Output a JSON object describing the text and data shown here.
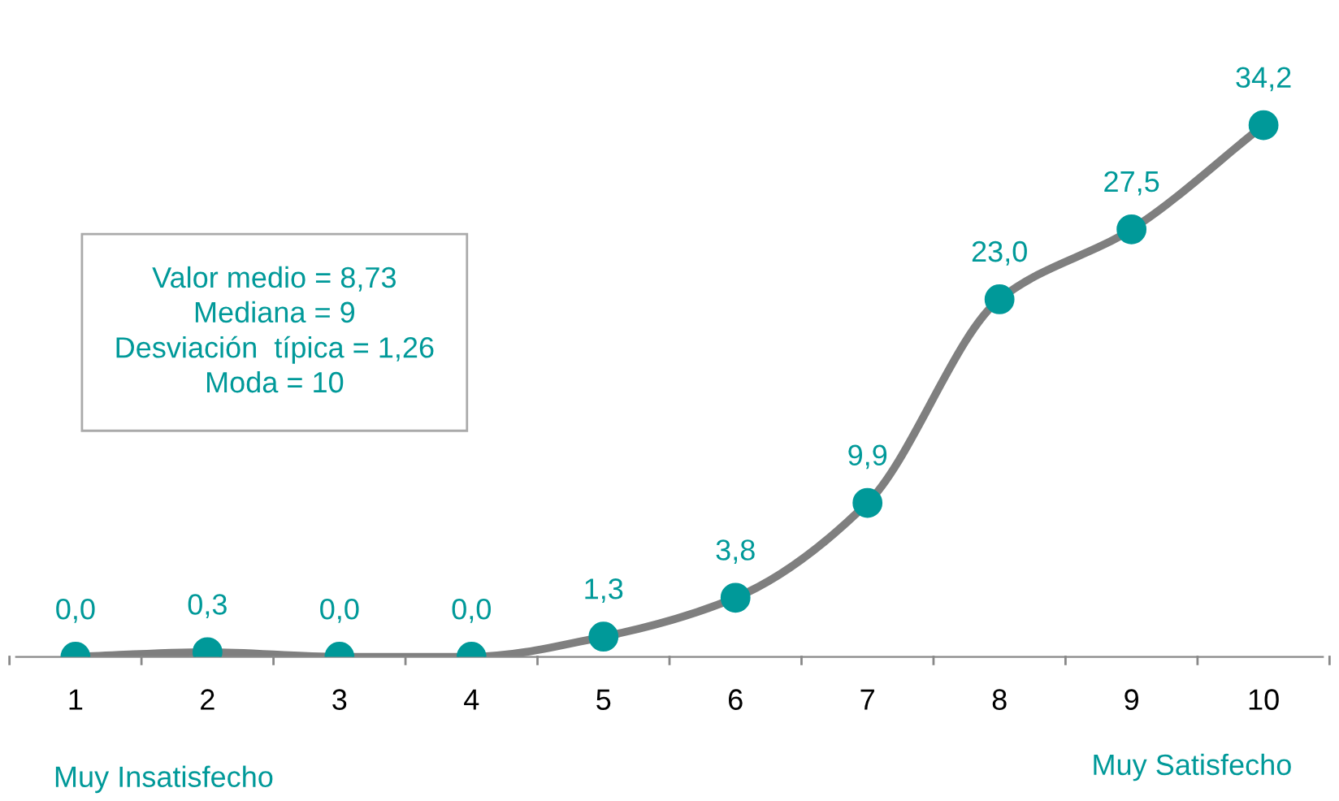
{
  "chart_data": {
    "type": "line",
    "categories": [
      "1",
      "2",
      "3",
      "4",
      "5",
      "6",
      "7",
      "8",
      "9",
      "10"
    ],
    "series": [
      {
        "color": "#7f7f7f",
        "colors": [
          "#009999",
          "#009999",
          "#009999",
          "#009999",
          "#009999",
          "#009999",
          "#009999",
          "#009999",
          "#009999",
          "#009999"
        ],
        "values": [
          0.0,
          0.3,
          0.0,
          0.0,
          1.3,
          3.8,
          9.9,
          23.0,
          27.5,
          34.2
        ],
        "value_labels": [
          "0,0",
          "0,3",
          "0,0",
          "0,0",
          "1,3",
          "3,8",
          "9,9",
          "23,0",
          "27,5",
          "34,2"
        ]
      }
    ],
    "marker": "circle",
    "line_style": "solid",
    "grid": false,
    "legend": false,
    "tick_labels": "x",
    "annotations": [
      "Valor medio = 8,73\nMediana = 9\nDesviación  típica = 1,26\nModa = 10",
      "Muy Insatisfecho",
      "Muy Satisfecho"
    ]
  }
}
